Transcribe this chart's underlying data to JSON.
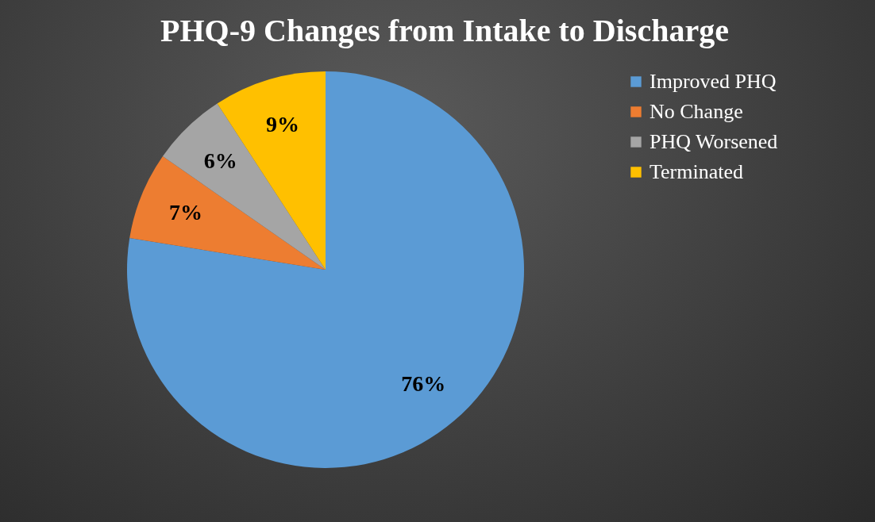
{
  "chart_data": {
    "type": "pie",
    "title": "PHQ-9 Changes from Intake to Discharge",
    "categories": [
      "Improved PHQ",
      "No Change",
      "PHQ Worsened",
      "Terminated"
    ],
    "values": [
      76,
      7,
      6,
      9
    ],
    "colors": [
      "#5b9bd5",
      "#ed7d31",
      "#a5a5a5",
      "#ffc000"
    ],
    "value_labels": [
      "76%",
      "7%",
      "6%",
      "9%"
    ],
    "legend": "right"
  }
}
